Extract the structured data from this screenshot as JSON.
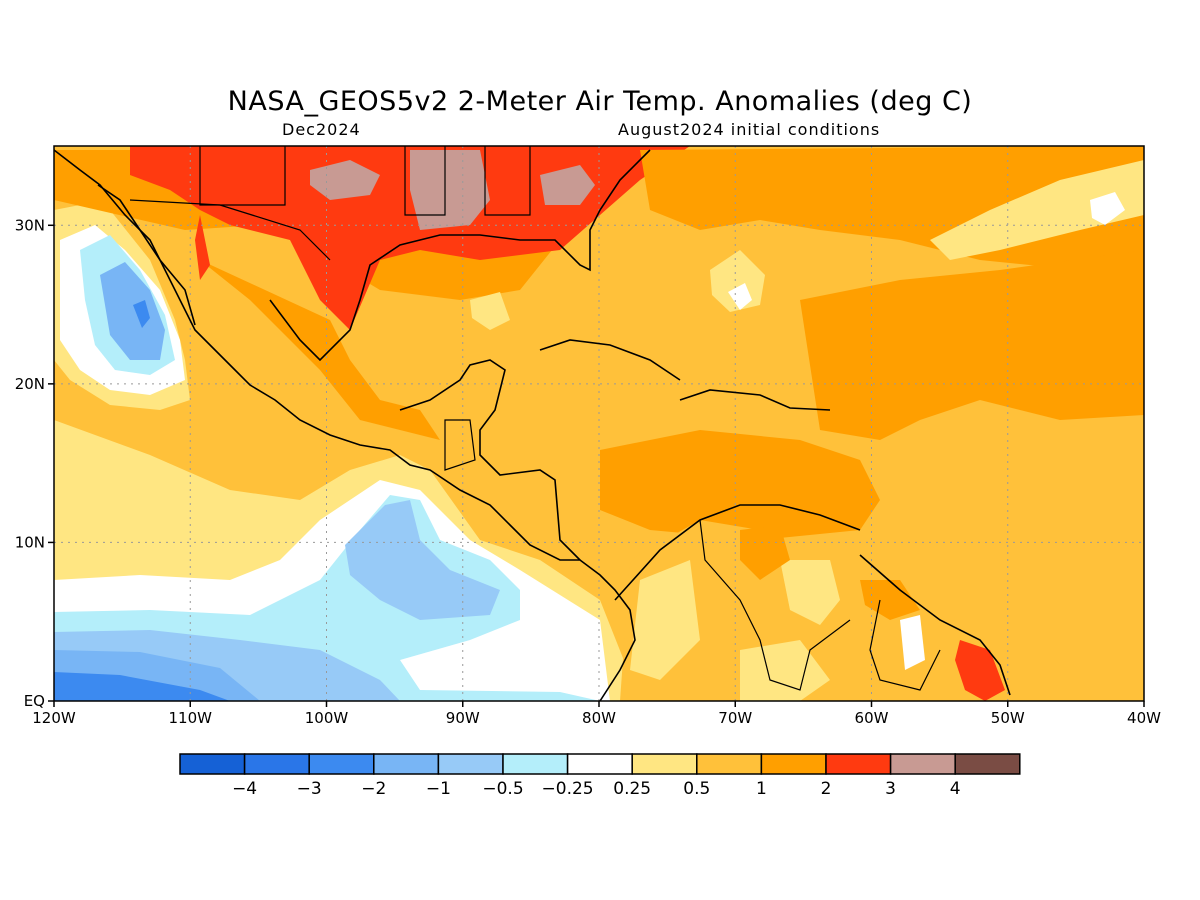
{
  "title": "NASA_GEOS5v2 2-Meter Air Temp. Anomalies (deg C)",
  "subtitle_left": "Dec2024",
  "subtitle_right": "August2024 initial conditions",
  "map": {
    "lon_range": [
      -120,
      -40
    ],
    "lat_range": [
      0,
      35
    ],
    "lon_ticks": [
      {
        "value": -120,
        "label": "120W"
      },
      {
        "value": -110,
        "label": "110W"
      },
      {
        "value": -100,
        "label": "100W"
      },
      {
        "value": -90,
        "label": "90W"
      },
      {
        "value": -80,
        "label": "80W"
      },
      {
        "value": -70,
        "label": "70W"
      },
      {
        "value": -60,
        "label": "60W"
      },
      {
        "value": -50,
        "label": "50W"
      },
      {
        "value": -40,
        "label": "40W"
      }
    ],
    "lat_ticks": [
      {
        "value": 0,
        "label": "EQ"
      },
      {
        "value": 10,
        "label": "10N"
      },
      {
        "value": 20,
        "label": "20N"
      },
      {
        "value": 30,
        "label": "30N"
      }
    ],
    "grid": true
  },
  "colorbar": {
    "colors": [
      "#1561d6",
      "#2a76e8",
      "#3c8af0",
      "#78b5f5",
      "#97caf7",
      "#b4eefa",
      "#ffffff",
      "#ffe682",
      "#ffc13a",
      "#ff9f00",
      "#ff3a10",
      "#c89a93",
      "#7a4c44"
    ],
    "labels": [
      "−4",
      "−3",
      "−2",
      "−1",
      "−0.5",
      "−0.25",
      "0.25",
      "0.5",
      "1",
      "2",
      "3",
      "4"
    ]
  }
}
